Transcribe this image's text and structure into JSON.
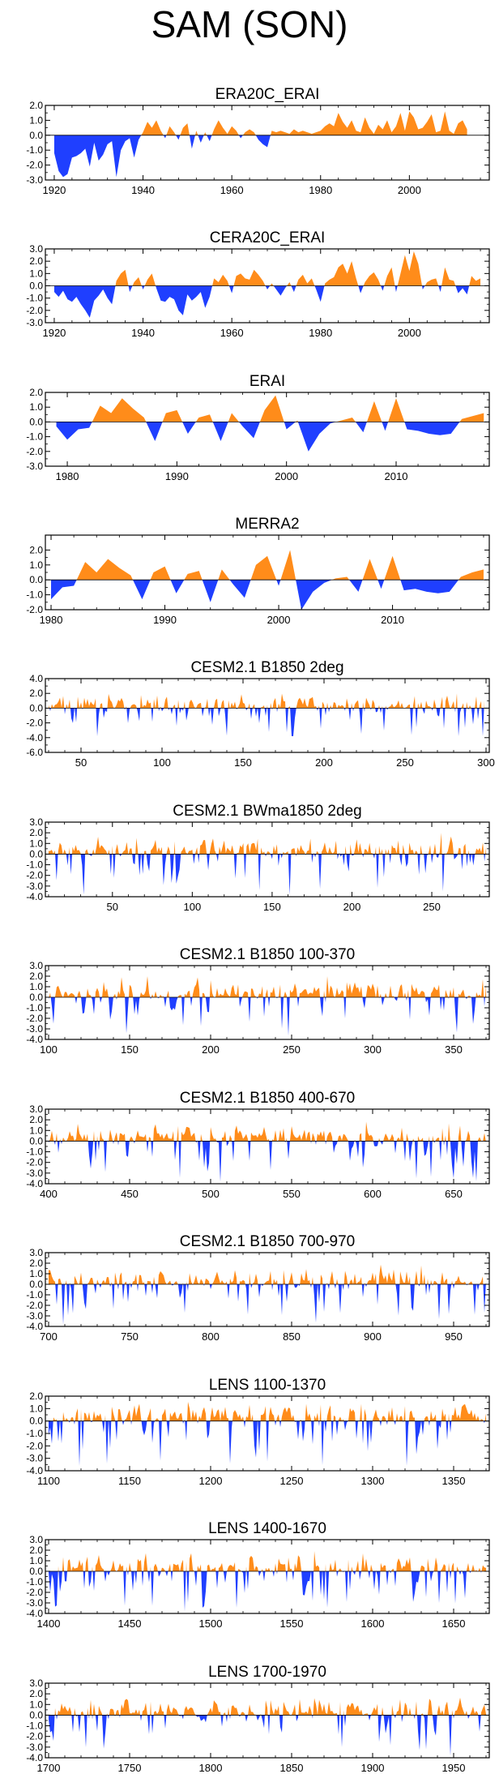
{
  "figure_title": "SAM (SON)",
  "colors": {
    "positive": "#ff8c1a",
    "negative": "#1f3fff",
    "axis": "#000000"
  },
  "chart_data": [
    {
      "type": "area",
      "title": "ERA20C_ERAI",
      "xlim": [
        1918,
        2018
      ],
      "ylim": [
        -3.0,
        2.0
      ],
      "yticks": [
        2.0,
        1.0,
        0.0,
        -1.0,
        -2.0,
        -3.0
      ],
      "ytick_labels": [
        "2.0",
        "1.0",
        "0.0",
        "-1.0",
        "-2.0",
        "-3.0"
      ],
      "xticks": [
        1920,
        1940,
        1960,
        1980,
        2000
      ],
      "xtick_labels": [
        "1920",
        "1940",
        "1960",
        "1980",
        "2000"
      ],
      "x_start": 1920,
      "values": [
        -1.2,
        -2.4,
        -2.8,
        -2.6,
        -1.5,
        -1.4,
        -1.2,
        -0.9,
        -2.1,
        -0.5,
        -1.7,
        -1.3,
        -0.6,
        -0.4,
        -2.8,
        -1.0,
        -0.4,
        -0.2,
        -1.5,
        -0.3,
        0.2,
        0.9,
        0.5,
        1.0,
        0.3,
        -0.2,
        0.6,
        0.2,
        -0.3,
        0.5,
        0.8,
        -0.9,
        0.3,
        -0.5,
        0.2,
        -0.4,
        0.4,
        1.0,
        0.5,
        0.1,
        0.6,
        0.3,
        -0.2,
        0.2,
        0.4,
        0.2,
        -0.3,
        -0.6,
        -0.8,
        0.3,
        0.2,
        0.3,
        0.2,
        0.1,
        0.4,
        0.2,
        0.3,
        0.2,
        0.1,
        0.2,
        0.3,
        0.6,
        0.8,
        0.6,
        1.5,
        0.9,
        0.5,
        1.0,
        0.3,
        0.2,
        1.2,
        0.5,
        0.1,
        0.7,
        0.4,
        1.0,
        0.2,
        0.6,
        1.5,
        0.3,
        1.6,
        1.2,
        0.4,
        0.5,
        0.9,
        1.4,
        0.2,
        0.3,
        1.6,
        0.3,
        0.1,
        0.8,
        1.0,
        0.4
      ]
    },
    {
      "type": "area",
      "title": "CERA20C_ERAI",
      "xlim": [
        1918,
        2018
      ],
      "ylim": [
        -3.0,
        3.0
      ],
      "yticks": [
        3.0,
        2.0,
        1.0,
        0.0,
        -1.0,
        -2.0,
        -3.0
      ],
      "ytick_labels": [
        "3.0",
        "2.0",
        "1.0",
        "0.0",
        "-1.0",
        "-2.0",
        "-3.0"
      ],
      "xticks": [
        1920,
        1940,
        1960,
        1980,
        2000
      ],
      "xtick_labels": [
        "1920",
        "1940",
        "1960",
        "1980",
        "2000"
      ],
      "x_start": 1920,
      "values": [
        -0.5,
        -0.9,
        -0.4,
        -1.1,
        -1.3,
        -0.9,
        -1.5,
        -2.0,
        -2.6,
        -1.2,
        -0.8,
        -0.3,
        -1.0,
        -1.5,
        0.4,
        1.0,
        1.3,
        -0.5,
        0.3,
        0.7,
        -0.3,
        0.5,
        1.0,
        -0.2,
        -1.2,
        -1.3,
        -0.9,
        -1.1,
        -2.0,
        -2.4,
        -0.7,
        -1.2,
        -0.9,
        -0.5,
        -1.8,
        -0.9,
        0.6,
        0.3,
        0.9,
        0.4,
        -0.6,
        0.8,
        1.0,
        0.6,
        0.5,
        1.3,
        0.9,
        0.4,
        -0.3,
        0.2,
        -0.3,
        -0.8,
        -0.2,
        0.3,
        -0.5,
        0.5,
        0.9,
        0.2,
        0.6,
        -0.3,
        -1.3,
        0.2,
        0.5,
        0.7,
        1.5,
        1.8,
        1.0,
        2.0,
        0.6,
        -0.6,
        0.3,
        0.8,
        1.1,
        0.5,
        -0.4,
        0.8,
        1.5,
        -0.5,
        1.0,
        2.5,
        1.2,
        2.8,
        1.8,
        -0.3,
        0.3,
        0.5,
        0.6,
        -0.5,
        1.5,
        0.5,
        0.4,
        -0.6,
        -0.2,
        -0.7,
        0.8,
        0.4,
        0.6
      ]
    },
    {
      "type": "area",
      "title": "ERAI",
      "xlim": [
        1978,
        2018.5
      ],
      "ylim": [
        -3.0,
        2.0
      ],
      "yticks": [
        2.0,
        1.0,
        0.0,
        -1.0,
        -2.0,
        -3.0
      ],
      "ytick_labels": [
        "2.0",
        "1.0",
        "0.0",
        "-1.0",
        "-2.0",
        "-3.0"
      ],
      "xticks": [
        1980,
        1990,
        2000,
        2010
      ],
      "xtick_labels": [
        "1980",
        "1990",
        "2000",
        "2010"
      ],
      "x_start": 1979,
      "values": [
        -0.3,
        -1.2,
        -0.5,
        -0.4,
        1.1,
        0.6,
        1.6,
        0.9,
        0.3,
        -1.3,
        0.6,
        0.8,
        -0.8,
        0.3,
        0.5,
        -1.3,
        0.6,
        -0.3,
        -1.1,
        0.8,
        1.8,
        -0.5,
        0.1,
        -2.0,
        -0.8,
        -0.1,
        0.1,
        0.3,
        -0.7,
        1.4,
        -0.6,
        1.6,
        -0.5,
        -0.6,
        -0.8,
        -0.9,
        -0.8,
        0.2,
        0.4,
        0.6
      ]
    },
    {
      "type": "area",
      "title": "MERRA2",
      "xlim": [
        1979.5,
        2018.5
      ],
      "ylim": [
        -2.0,
        3.0
      ],
      "yticks": [
        2.0,
        1.0,
        0.0,
        -1.0,
        -2.0
      ],
      "ytick_labels": [
        "2.0",
        "1.0",
        "0.0",
        "-1.0",
        "-2.0"
      ],
      "xticks": [
        1980,
        1990,
        2000,
        2010
      ],
      "xtick_labels": [
        "1980",
        "1990",
        "2000",
        "2010"
      ],
      "x_start": 1980,
      "values": [
        -1.3,
        -0.5,
        -0.4,
        1.2,
        0.5,
        1.4,
        0.8,
        0.3,
        -1.3,
        0.5,
        0.9,
        -0.9,
        0.4,
        0.6,
        -1.5,
        0.7,
        -0.3,
        -1.2,
        1.0,
        1.6,
        -0.4,
        2.0,
        -2.0,
        -0.8,
        -0.2,
        0.1,
        0.2,
        -0.8,
        1.4,
        -0.6,
        1.6,
        -0.7,
        -0.6,
        -0.8,
        -0.9,
        -0.8,
        0.2,
        0.5,
        0.7
      ]
    },
    {
      "type": "area",
      "title": "CESM2.1 B1850 2deg",
      "xlim": [
        28,
        302
      ],
      "ylim": [
        -6.0,
        4.0
      ],
      "yticks": [
        4.0,
        2.0,
        0.0,
        -2.0,
        -4.0,
        -6.0
      ],
      "ytick_labels": [
        "4.0",
        "2.0",
        "0.0",
        "-2.0",
        "-4.0",
        "-6.0"
      ],
      "xticks": [
        50,
        100,
        150,
        200,
        250,
        300
      ],
      "xtick_labels": [
        "50",
        "100",
        "150",
        "200",
        "250",
        "300"
      ],
      "x_start": 30,
      "series_length": 270,
      "amplitude": 1.2,
      "seed": 5
    },
    {
      "type": "area",
      "title": "CESM2.1 BWma1850 2deg",
      "xlim": [
        8,
        286
      ],
      "ylim": [
        -4.0,
        3.0
      ],
      "yticks": [
        3.0,
        2.0,
        1.0,
        0.0,
        -1.0,
        -2.0,
        -3.0,
        -4.0
      ],
      "ytick_labels": [
        "3.0",
        "2.0",
        "1.0",
        "0.0",
        "-1.0",
        "-2.0",
        "-3.0",
        "-4.0"
      ],
      "xticks": [
        50,
        100,
        150,
        200,
        250
      ],
      "xtick_labels": [
        "50",
        "100",
        "150",
        "200",
        "250"
      ],
      "x_start": 10,
      "series_length": 275,
      "amplitude": 1.0,
      "seed": 11
    },
    {
      "type": "area",
      "title": "CESM2.1 B1850 100-370",
      "xlim": [
        98,
        372
      ],
      "ylim": [
        -4.0,
        3.0
      ],
      "yticks": [
        3.0,
        2.0,
        1.0,
        0.0,
        -1.0,
        -2.0,
        -3.0,
        -4.0
      ],
      "ytick_labels": [
        "3.0",
        "2.0",
        "1.0",
        "0.0",
        "-1.0",
        "-2.0",
        "-3.0",
        "-4.0"
      ],
      "xticks": [
        100,
        150,
        200,
        250,
        300,
        350
      ],
      "xtick_labels": [
        "100",
        "150",
        "200",
        "250",
        "300",
        "350"
      ],
      "x_start": 100,
      "series_length": 271,
      "amplitude": 1.0,
      "seed": 23
    },
    {
      "type": "area",
      "title": "CESM2.1 B1850 400-670",
      "xlim": [
        398,
        672
      ],
      "ylim": [
        -4.0,
        3.0
      ],
      "yticks": [
        3.0,
        2.0,
        1.0,
        0.0,
        -1.0,
        -2.0,
        -3.0,
        -4.0
      ],
      "ytick_labels": [
        "3.0",
        "2.0",
        "1.0",
        "0.0",
        "-1.0",
        "-2.0",
        "-3.0",
        "-4.0"
      ],
      "xticks": [
        400,
        450,
        500,
        550,
        600,
        650
      ],
      "xtick_labels": [
        "400",
        "450",
        "500",
        "550",
        "600",
        "650"
      ],
      "x_start": 400,
      "series_length": 271,
      "amplitude": 1.0,
      "seed": 37
    },
    {
      "type": "area",
      "title": "CESM2.1 B1850 700-970",
      "xlim": [
        698,
        972
      ],
      "ylim": [
        -4.0,
        3.0
      ],
      "yticks": [
        3.0,
        2.0,
        1.0,
        0.0,
        -1.0,
        -2.0,
        -3.0,
        -4.0
      ],
      "ytick_labels": [
        "3.0",
        "2.0",
        "1.0",
        "0.0",
        "-1.0",
        "-2.0",
        "-3.0",
        "-4.0"
      ],
      "xticks": [
        700,
        750,
        800,
        850,
        900,
        950
      ],
      "xtick_labels": [
        "700",
        "750",
        "800",
        "850",
        "900",
        "950"
      ],
      "x_start": 700,
      "series_length": 271,
      "amplitude": 1.0,
      "seed": 41
    },
    {
      "type": "area",
      "title": "LENS 1100-1370",
      "xlim": [
        1098,
        1372
      ],
      "ylim": [
        -4.0,
        2.0
      ],
      "yticks": [
        2.0,
        1.0,
        0.0,
        -1.0,
        -2.0,
        -3.0,
        -4.0
      ],
      "ytick_labels": [
        "2.0",
        "1.0",
        "0.0",
        "-1.0",
        "-2.0",
        "-3.0",
        "-4.0"
      ],
      "xticks": [
        1100,
        1150,
        1200,
        1250,
        1300,
        1350
      ],
      "xtick_labels": [
        "1100",
        "1150",
        "1200",
        "1250",
        "1300",
        "1350"
      ],
      "x_start": 1100,
      "series_length": 271,
      "amplitude": 1.0,
      "seed": 53
    },
    {
      "type": "area",
      "title": "LENS 1400-1670",
      "xlim": [
        1398,
        1672
      ],
      "ylim": [
        -4.0,
        3.0
      ],
      "yticks": [
        3.0,
        2.0,
        1.0,
        0.0,
        -1.0,
        -2.0,
        -3.0,
        -4.0
      ],
      "ytick_labels": [
        "3.0",
        "2.0",
        "1.0",
        "0.0",
        "-1.0",
        "-2.0",
        "-3.0",
        "-4.0"
      ],
      "xticks": [
        1400,
        1450,
        1500,
        1550,
        1600,
        1650
      ],
      "xtick_labels": [
        "1400",
        "1450",
        "1500",
        "1550",
        "1600",
        "1650"
      ],
      "x_start": 1400,
      "series_length": 271,
      "amplitude": 1.0,
      "seed": 67
    },
    {
      "type": "area",
      "title": "LENS 1700-1970",
      "xlim": [
        1698,
        1972
      ],
      "ylim": [
        -4.0,
        3.0
      ],
      "yticks": [
        3.0,
        2.0,
        1.0,
        0.0,
        -1.0,
        -2.0,
        -3.0,
        -4.0
      ],
      "ytick_labels": [
        "3.0",
        "2.0",
        "1.0",
        "0.0",
        "-1.0",
        "-2.0",
        "-3.0",
        "-4.0"
      ],
      "xticks": [
        1700,
        1750,
        1800,
        1850,
        1900,
        1950
      ],
      "xtick_labels": [
        "1700",
        "1750",
        "1800",
        "1850",
        "1900",
        "1950"
      ],
      "x_start": 1700,
      "series_length": 271,
      "amplitude": 1.0,
      "seed": 79
    }
  ]
}
